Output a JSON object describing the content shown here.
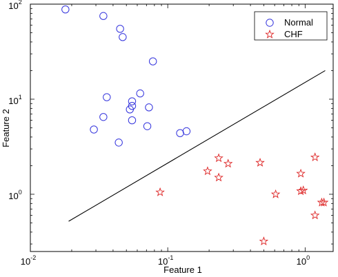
{
  "chart_data": {
    "type": "scatter",
    "title": "",
    "xlabel": "Feature 1",
    "ylabel": "Feature 2",
    "xscale": "log",
    "yscale": "log",
    "xlim": [
      0.01,
      1.6
    ],
    "ylim": [
      0.25,
      100
    ],
    "xticks": [
      {
        "base": "10",
        "exp": "-2",
        "value": 0.01
      },
      {
        "base": "10",
        "exp": "-1",
        "value": 0.1
      },
      {
        "base": "10",
        "exp": "0",
        "value": 1
      }
    ],
    "yticks": [
      {
        "base": "10",
        "exp": "0",
        "value": 1
      },
      {
        "base": "10",
        "exp": "1",
        "value": 10
      },
      {
        "base": "10",
        "exp": "2",
        "value": 100
      }
    ],
    "grid": false,
    "legend_position": "top-right",
    "series": [
      {
        "name": "Normal",
        "marker": "circle",
        "color": "#3333dd",
        "points": [
          [
            0.018,
            88
          ],
          [
            0.034,
            75
          ],
          [
            0.045,
            55
          ],
          [
            0.047,
            45
          ],
          [
            0.078,
            25
          ],
          [
            0.036,
            10.5
          ],
          [
            0.055,
            9.5
          ],
          [
            0.055,
            8.5
          ],
          [
            0.053,
            7.8
          ],
          [
            0.063,
            11.5
          ],
          [
            0.073,
            8.2
          ],
          [
            0.034,
            6.5
          ],
          [
            0.055,
            6.0
          ],
          [
            0.029,
            4.8
          ],
          [
            0.071,
            5.2
          ],
          [
            0.044,
            3.5
          ],
          [
            0.123,
            4.4
          ],
          [
            0.137,
            4.6
          ]
        ]
      },
      {
        "name": "CHF",
        "marker": "star",
        "color": "#dd2222",
        "points": [
          [
            0.088,
            1.05
          ],
          [
            0.195,
            1.75
          ],
          [
            0.235,
            2.4
          ],
          [
            0.235,
            1.5
          ],
          [
            0.275,
            2.1
          ],
          [
            0.47,
            2.15
          ],
          [
            0.5,
            0.32
          ],
          [
            0.61,
            1.0
          ],
          [
            0.93,
            1.65
          ],
          [
            0.93,
            1.08
          ],
          [
            0.97,
            1.1
          ],
          [
            1.18,
            2.45
          ],
          [
            1.18,
            0.6
          ],
          [
            1.32,
            0.82
          ],
          [
            1.37,
            0.82
          ]
        ]
      }
    ],
    "decision_line": {
      "x": [
        0.019,
        1.4
      ],
      "y": [
        0.52,
        20
      ],
      "color": "#000000"
    }
  }
}
